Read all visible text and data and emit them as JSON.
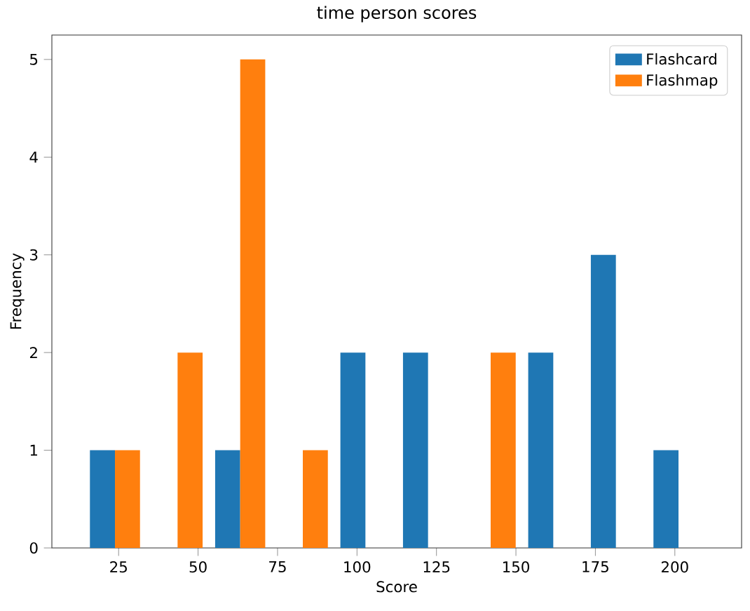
{
  "chart_data": {
    "type": "histogram",
    "title": "time person scores",
    "xlabel": "Score",
    "ylabel": "Frequency",
    "bins": [
      14,
      33.7,
      53.4,
      73.1,
      92.8,
      112.5,
      132.2,
      151.9,
      171.6,
      191.3,
      211
    ],
    "series": [
      {
        "name": "Flashcard",
        "color": "#1f77b4",
        "values": [
          1,
          0,
          1,
          0,
          2,
          2,
          0,
          2,
          3,
          1
        ]
      },
      {
        "name": "Flashmap",
        "color": "#ff7f0e",
        "values": [
          1,
          2,
          5,
          1,
          0,
          0,
          2,
          0,
          0,
          0
        ]
      }
    ],
    "xlim": [
      4,
      221
    ],
    "ylim": [
      0,
      5.25
    ],
    "xticks": [
      25,
      50,
      75,
      100,
      125,
      150,
      175,
      200
    ],
    "yticks": [
      0,
      1,
      2,
      3,
      4,
      5
    ],
    "grid": false,
    "legend": "top right"
  }
}
